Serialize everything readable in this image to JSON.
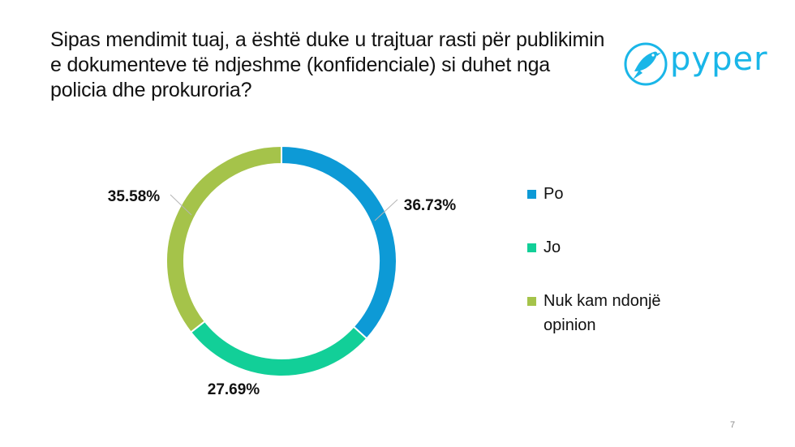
{
  "title": "Sipas mendimit tuaj, a është duke u trajtuar rasti për publikimin e dokumenteve të ndjeshme (konfidenciale) si duhet nga policia dhe prokuroria?",
  "logo": {
    "text": "pyper",
    "icon": "bird-icon",
    "color": "#1ab6e8"
  },
  "page_number": "7",
  "chart_data": {
    "type": "pie",
    "variant": "donut",
    "title": "",
    "legend_position": "right",
    "labels_format": "percent",
    "slices": [
      {
        "name": "Po",
        "value": 36.73,
        "label": "36.73%",
        "color": "#0d9ad6"
      },
      {
        "name": "Jo",
        "value": 27.69,
        "label": "27.69%",
        "color": "#12cf98"
      },
      {
        "name": "Nuk kam ndonjë opinion",
        "value": 35.58,
        "label": "35.58%",
        "color": "#a5c34a"
      }
    ]
  }
}
